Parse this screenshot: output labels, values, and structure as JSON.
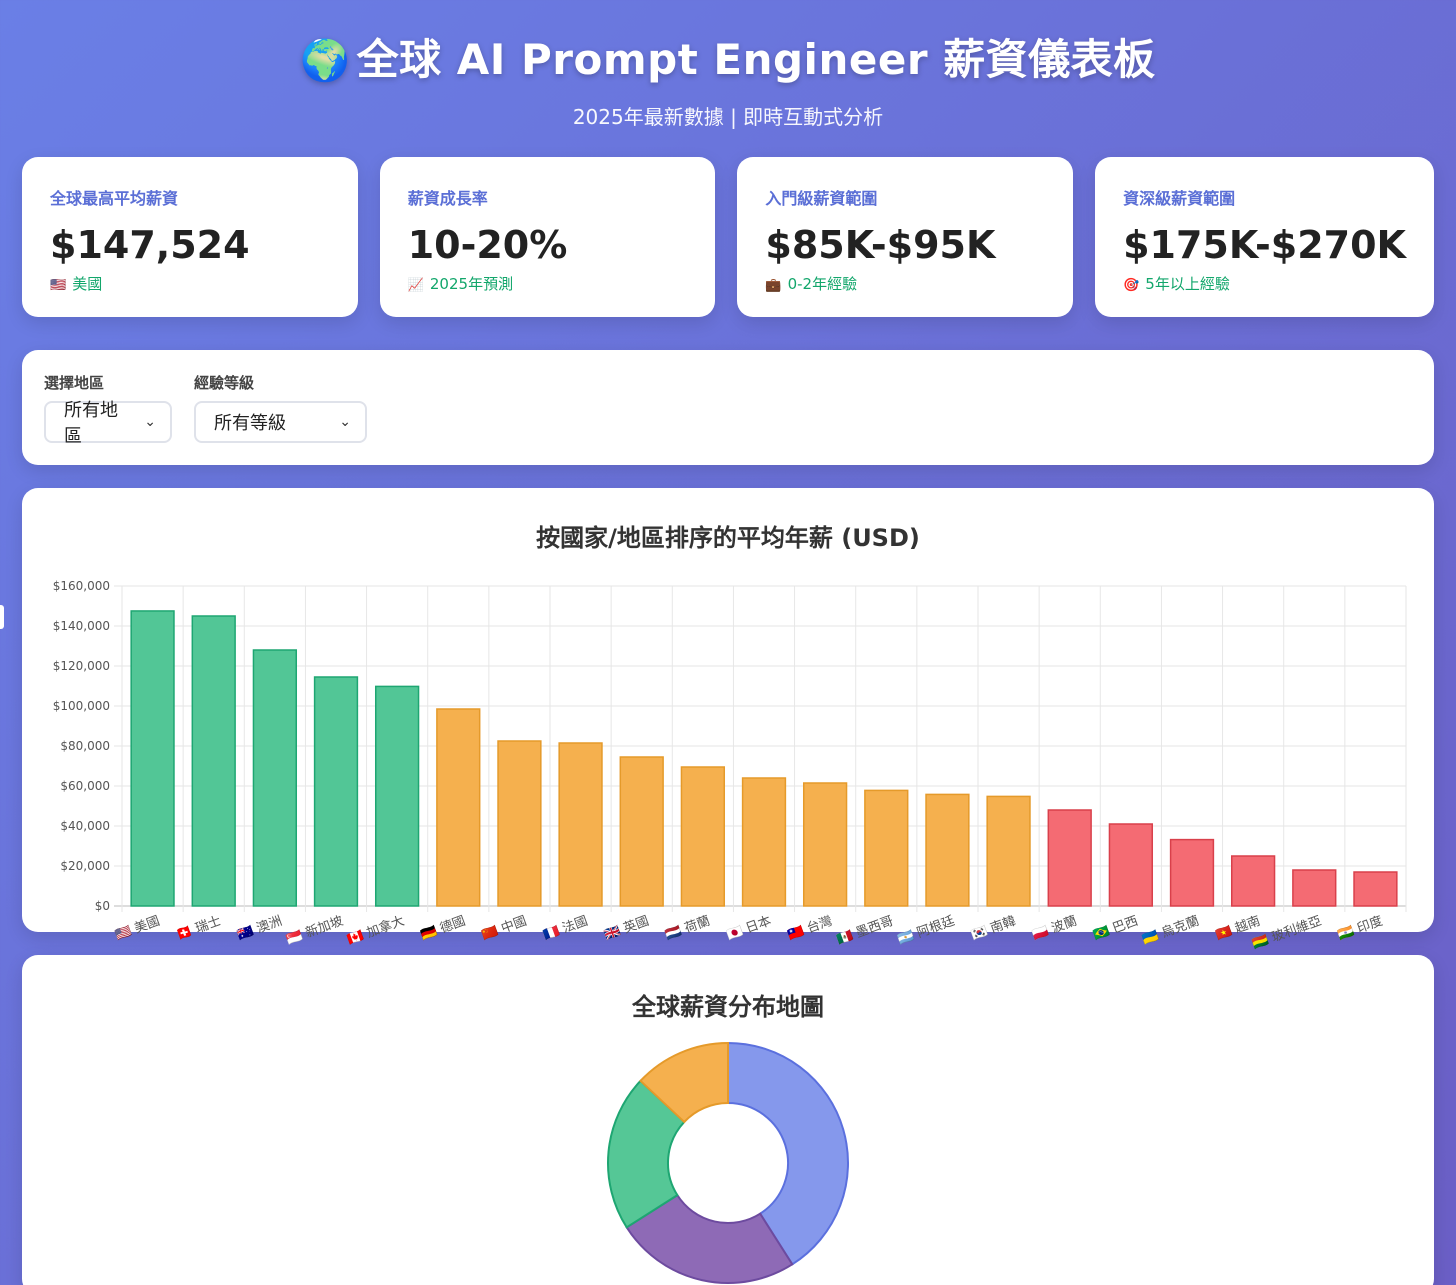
{
  "header": {
    "icon": "globe-icon",
    "title": "全球 AI Prompt Engineer 薪資儀表板",
    "subtitle": "2025年最新數據 | 即時互動式分析"
  },
  "stats": [
    {
      "label": "全球最高平均薪資",
      "value": "$147,524",
      "note_icon": "us-flag-icon",
      "note": "美國"
    },
    {
      "label": "薪資成長率",
      "value": "10-20%",
      "note_icon": "chart-up-icon",
      "note": "2025年預測"
    },
    {
      "label": "入門級薪資範圍",
      "value": "$85K-$95K",
      "note_icon": "briefcase-icon",
      "note": "0-2年經驗"
    },
    {
      "label": "資深級薪資範圍",
      "value": "$175K-$270K",
      "note_icon": "target-icon",
      "note": "5年以上經驗"
    }
  ],
  "filters": {
    "region": {
      "label": "選擇地區",
      "value": "所有地區"
    },
    "level": {
      "label": "經驗等級",
      "value": "所有等級"
    }
  },
  "chart": {
    "title": "按國家/地區排序的平均年薪 (USD)"
  },
  "chart_data": [
    {
      "type": "bar",
      "title": "按國家/地區排序的平均年薪 (USD)",
      "categories": [
        "🇺🇸 美國",
        "🇨🇭 瑞士",
        "🇦🇺 澳洲",
        "🇸🇬 新加坡",
        "🇨🇦 加拿大",
        "🇩🇪 德國",
        "🇨🇳 中國",
        "🇫🇷 法國",
        "🇬🇧 英國",
        "🇳🇱 荷蘭",
        "🇯🇵 日本",
        "🇹🇼 台灣",
        "🇲🇽 墨西哥",
        "🇦🇷 阿根廷",
        "🇰🇷 南韓",
        "🇵🇱 波蘭",
        "🇧🇷 巴西",
        "🇺🇦 烏克蘭",
        "🇻🇳 越南",
        "🇧🇴 玻利維亞",
        "🇮🇳 印度"
      ],
      "values": [
        147524,
        145000,
        128000,
        114500,
        109800,
        98500,
        82500,
        81500,
        74500,
        69500,
        64000,
        61500,
        57800,
        55800,
        54800,
        48000,
        41000,
        33200,
        25000,
        18000,
        17000
      ],
      "tiers": [
        "high",
        "high",
        "high",
        "high",
        "high",
        "mid",
        "mid",
        "mid",
        "mid",
        "mid",
        "mid",
        "mid",
        "mid",
        "mid",
        "mid",
        "low",
        "low",
        "low",
        "low",
        "low",
        "low"
      ],
      "colors": {
        "high": "#52c696",
        "mid": "#f5b04e",
        "low": "#f46b73",
        "high_border": "#1ea672",
        "mid_border": "#e59a2a",
        "low_border": "#d9404b"
      },
      "ylim": [
        0,
        160000
      ],
      "yticks": [
        "$0",
        "$20,000",
        "$40,000",
        "$60,000",
        "$80,000",
        "$100,000",
        "$120,000",
        "$140,000",
        "$160,000"
      ],
      "grid": true
    },
    {
      "type": "pie",
      "title": "全球薪資分布地圖",
      "values": [
        41,
        25,
        21,
        13
      ],
      "colors": [
        "#8598ec",
        "#8e6ab6",
        "#55c796",
        "#f5b04e"
      ],
      "borders": [
        "#5b70de",
        "#6d4b9f",
        "#1ea672",
        "#e59a2a"
      ]
    }
  ],
  "pie": {
    "title": "全球薪資分布地圖"
  }
}
